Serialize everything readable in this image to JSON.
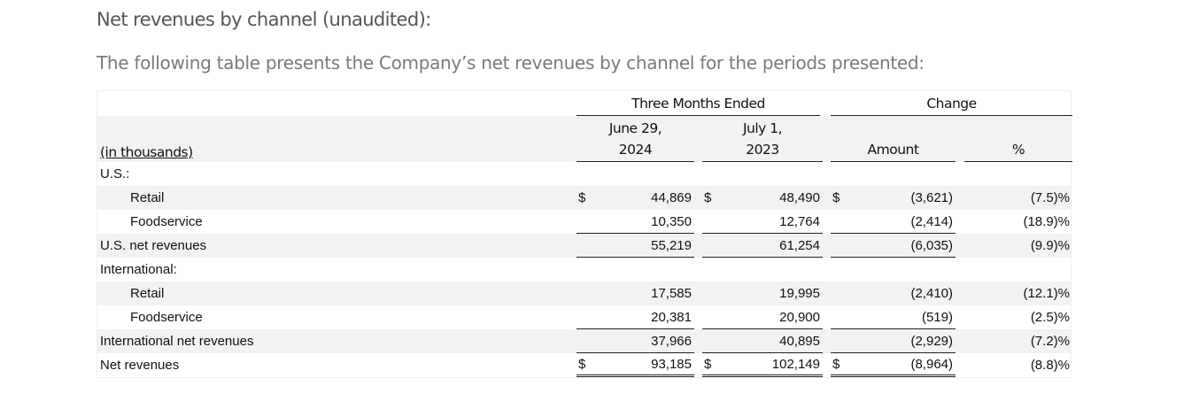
{
  "title": "Net revenues by channel (unaudited):",
  "subtitle": "The following table presents the Company’s net revenues by channel for the periods presented:",
  "table": {
    "group_headers": {
      "period": "Three Months Ended",
      "change": "Change"
    },
    "units_label": "(in thousands)",
    "columns": [
      {
        "line1": "June 29,",
        "line2": "2024"
      },
      {
        "line1": "July 1,",
        "line2": "2023"
      },
      {
        "line1": "",
        "line2": "Amount"
      },
      {
        "line1": "",
        "line2": "%"
      }
    ],
    "rows": [
      {
        "label": "U.S.:",
        "indent": false,
        "kind": "section",
        "dollar": false,
        "values": [
          "",
          "",
          "",
          ""
        ]
      },
      {
        "label": "Retail",
        "indent": true,
        "kind": "line",
        "dollar": true,
        "values": [
          "44,869",
          "48,490",
          "(3,621)",
          "(7.5)%"
        ]
      },
      {
        "label": "Foodservice",
        "indent": true,
        "kind": "line-last",
        "dollar": false,
        "values": [
          "10,350",
          "12,764",
          "(2,414)",
          "(18.9)%"
        ]
      },
      {
        "label": "U.S. net revenues",
        "indent": false,
        "kind": "subtotal",
        "dollar": false,
        "values": [
          "55,219",
          "61,254",
          "(6,035)",
          "(9.9)%"
        ]
      },
      {
        "label": "International:",
        "indent": false,
        "kind": "section",
        "dollar": false,
        "values": [
          "",
          "",
          "",
          ""
        ]
      },
      {
        "label": "Retail",
        "indent": true,
        "kind": "line",
        "dollar": false,
        "values": [
          "17,585",
          "19,995",
          "(2,410)",
          "(12.1)%"
        ]
      },
      {
        "label": "Foodservice",
        "indent": true,
        "kind": "line-last",
        "dollar": false,
        "values": [
          "20,381",
          "20,900",
          "(519)",
          "(2.5)%"
        ]
      },
      {
        "label": "International net revenues",
        "indent": false,
        "kind": "subtotal",
        "dollar": false,
        "values": [
          "37,966",
          "40,895",
          "(2,929)",
          "(7.2)%"
        ]
      },
      {
        "label": "Net revenues",
        "indent": false,
        "kind": "total",
        "dollar": true,
        "values": [
          "93,185",
          "102,149",
          "(8,964)",
          "(8.8)%"
        ]
      }
    ],
    "currency_symbol": "$"
  }
}
